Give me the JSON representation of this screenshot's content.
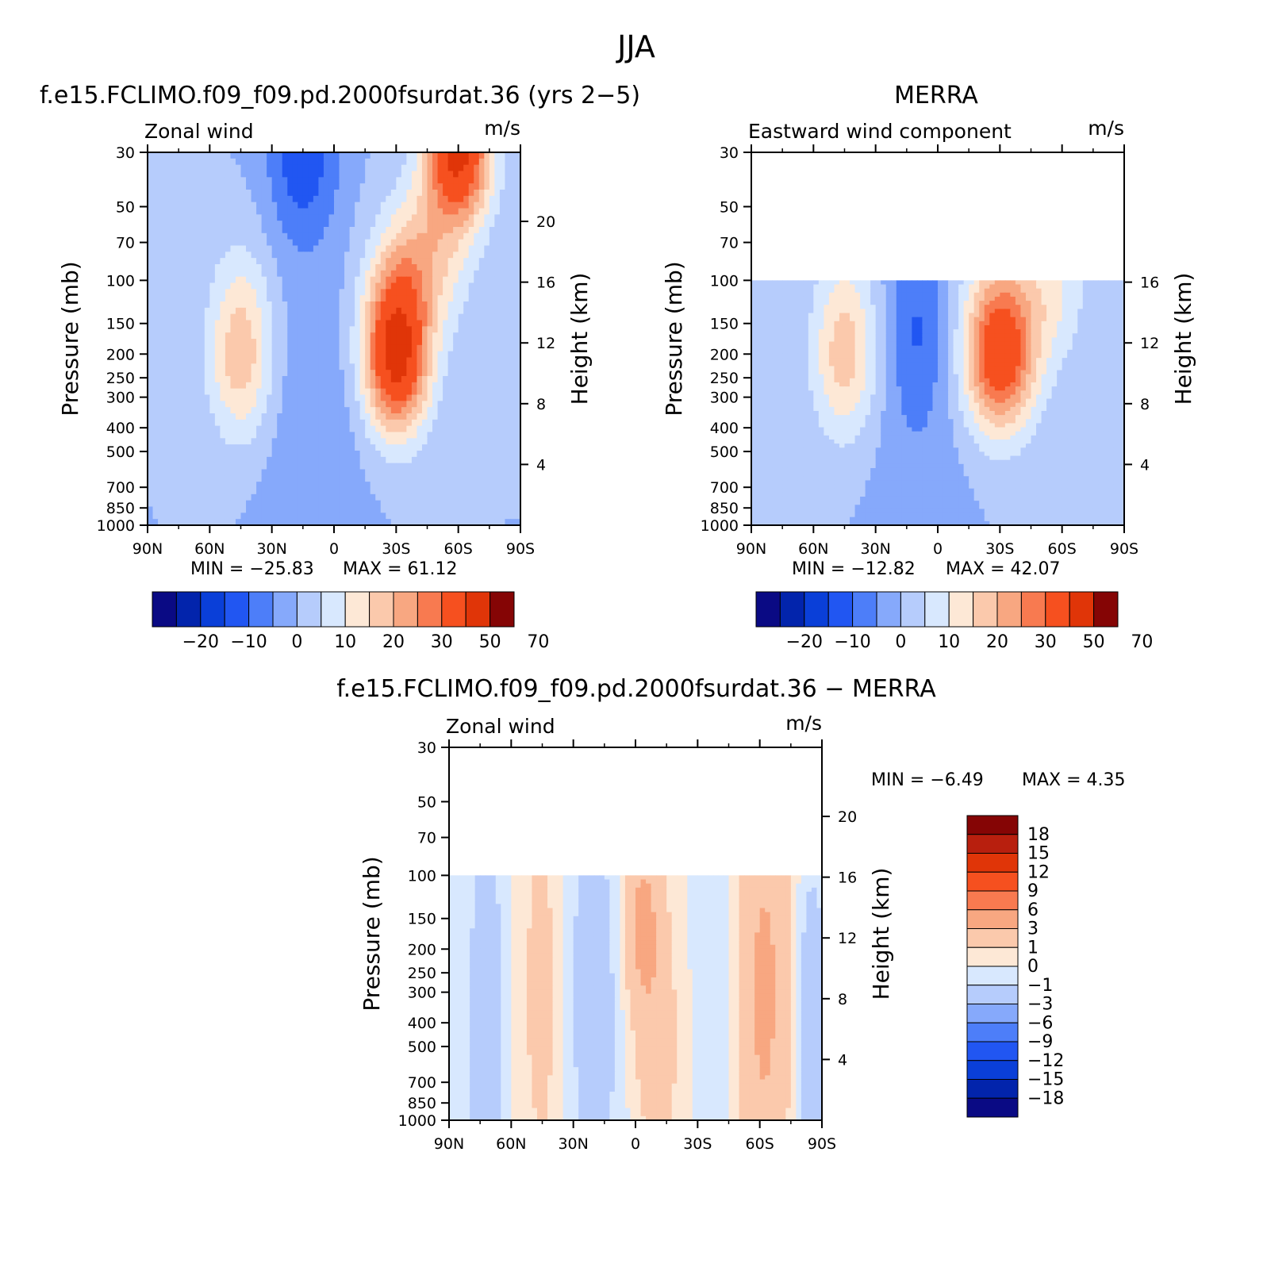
{
  "page": {
    "title": "JJA"
  },
  "chart_data": [
    {
      "id": "model",
      "type": "heatmap",
      "title": "f.e15.FCLIMO.f09_f09.pd.2000fsurdat.36 (yrs 2−5)",
      "subtitle_left": "Zonal wind",
      "subtitle_right": "m/s",
      "ylabel": "Pressure (mb)",
      "ylabel_right": "Height (km)",
      "x_ticks": [
        "90N",
        "60N",
        "30N",
        "0",
        "30S",
        "60S",
        "90S"
      ],
      "x_values": [
        90,
        60,
        30,
        0,
        -30,
        -60,
        -90
      ],
      "y_ticks": [
        "30",
        "50",
        "70",
        "100",
        "150",
        "200",
        "250",
        "300",
        "400",
        "500",
        "700",
        "850",
        "1000"
      ],
      "y_values": [
        30,
        50,
        70,
        100,
        150,
        200,
        250,
        300,
        400,
        500,
        700,
        850,
        1000
      ],
      "ylim": [
        1000,
        30
      ],
      "y_scale": "log",
      "height_ticks": [
        "20",
        "16",
        "12",
        "8",
        "4"
      ],
      "height_values": [
        20,
        16,
        12,
        8,
        4
      ],
      "data_top": 30,
      "min_text": "MIN = −25.83",
      "max_text": "MAX = 61.12",
      "min": -25.83,
      "max": 61.12,
      "levels": [
        -25,
        -20,
        -15,
        -10,
        -5,
        0,
        5,
        10,
        15,
        20,
        25,
        30,
        40,
        50,
        60,
        70
      ],
      "colorbar_labels": [
        "−20",
        "−10",
        "0",
        "10",
        "20",
        "30",
        "50",
        "70"
      ],
      "colorbar_label_values": [
        -20,
        -10,
        0,
        10,
        20,
        30,
        50,
        70
      ],
      "jets": [
        {
          "lat": 45,
          "p": 200,
          "peak": 19,
          "sx": 11,
          "sy": 0.55,
          "ymax": 1
        },
        {
          "lat": -30,
          "p": 200,
          "peak": 45,
          "sx": 11,
          "sy": 0.5,
          "ymax": 1
        },
        {
          "lat": -60,
          "p": 30,
          "peak": 42,
          "sx": 11,
          "sy": 0.45,
          "ymax": 0
        },
        {
          "lat": -45,
          "p": 80,
          "peak": 15,
          "sx": 14,
          "sy": 0.5,
          "ymax": 0
        },
        {
          "lat": 15,
          "p": 30,
          "peak": -14,
          "sx": 12,
          "sy": 0.6,
          "ymax": 0
        },
        {
          "lat": 10,
          "p": 400,
          "peak": -4,
          "sx": 18,
          "sy": 1.0,
          "ymax": 0
        }
      ]
    },
    {
      "id": "merra",
      "type": "heatmap",
      "title": "MERRA",
      "subtitle_left": "Eastward wind component",
      "subtitle_right": "m/s",
      "ylabel": "Pressure (mb)",
      "ylabel_right": "Height (km)",
      "x_ticks": [
        "90N",
        "60N",
        "30N",
        "0",
        "30S",
        "60S",
        "90S"
      ],
      "x_values": [
        90,
        60,
        30,
        0,
        -30,
        -60,
        -90
      ],
      "y_ticks": [
        "30",
        "50",
        "70",
        "100",
        "150",
        "200",
        "250",
        "300",
        "400",
        "500",
        "700",
        "850",
        "1000"
      ],
      "y_values": [
        30,
        50,
        70,
        100,
        150,
        200,
        250,
        300,
        400,
        500,
        700,
        850,
        1000
      ],
      "ylim": [
        1000,
        30
      ],
      "y_scale": "log",
      "height_ticks": [
        "16",
        "12",
        "8",
        "4"
      ],
      "height_values": [
        16,
        12,
        8,
        4
      ],
      "data_top": 100,
      "min_text": "MIN = −12.82",
      "max_text": "MAX = 42.07",
      "min": -12.82,
      "max": 42.07,
      "levels": [
        -25,
        -20,
        -15,
        -10,
        -5,
        0,
        5,
        10,
        15,
        20,
        25,
        30,
        40,
        50,
        60,
        70
      ],
      "colorbar_labels": [
        "−20",
        "−10",
        "0",
        "10",
        "20",
        "30",
        "50",
        "70"
      ],
      "colorbar_label_values": [
        -20,
        -10,
        0,
        10,
        20,
        30,
        50,
        70
      ],
      "jets": [
        {
          "lat": 45,
          "p": 200,
          "peak": 18,
          "sx": 11,
          "sy": 0.55,
          "ymax": 1
        },
        {
          "lat": -30,
          "p": 200,
          "peak": 38,
          "sx": 12,
          "sy": 0.5,
          "ymax": 1
        },
        {
          "lat": -55,
          "p": 110,
          "peak": 10,
          "sx": 12,
          "sy": 0.5,
          "ymax": 0
        },
        {
          "lat": 10,
          "p": 150,
          "peak": -9,
          "sx": 10,
          "sy": 0.6,
          "ymax": 0
        },
        {
          "lat": 10,
          "p": 500,
          "peak": -3,
          "sx": 16,
          "sy": 1.0,
          "ymax": 0
        }
      ]
    },
    {
      "id": "diff",
      "type": "heatmap",
      "title": "f.e15.FCLIMO.f09_f09.pd.2000fsurdat.36 − MERRA",
      "subtitle_left": "Zonal wind",
      "subtitle_right": "m/s",
      "ylabel": "Pressure (mb)",
      "ylabel_right": "Height (km)",
      "x_ticks": [
        "90N",
        "60N",
        "30N",
        "0",
        "30S",
        "60S",
        "90S"
      ],
      "x_values": [
        90,
        60,
        30,
        0,
        -30,
        -60,
        -90
      ],
      "y_ticks": [
        "30",
        "50",
        "70",
        "100",
        "150",
        "200",
        "250",
        "300",
        "400",
        "500",
        "700",
        "850",
        "1000"
      ],
      "y_values": [
        30,
        50,
        70,
        100,
        150,
        200,
        250,
        300,
        400,
        500,
        700,
        850,
        1000
      ],
      "ylim": [
        1000,
        30
      ],
      "y_scale": "log",
      "height_ticks": [
        "20",
        "16",
        "12",
        "8",
        "4"
      ],
      "height_values": [
        20,
        16,
        12,
        8,
        4
      ],
      "data_top": 100,
      "min_text": "MIN = −6.49",
      "max_text": "MAX = 4.35",
      "min": -6.49,
      "max": 4.35,
      "levels": [
        -18,
        -15,
        -12,
        -9,
        -6,
        -3,
        -1,
        0,
        1,
        3,
        6,
        9,
        12,
        15,
        18
      ],
      "colorbar_labels": [
        "18",
        "15",
        "12",
        "9",
        "6",
        "3",
        "1",
        "0",
        "−1",
        "−3",
        "−6",
        "−9",
        "−12",
        "−15",
        "−18"
      ],
      "colorbar_label_values": [
        18,
        15,
        12,
        9,
        6,
        3,
        1,
        0,
        -1,
        -3,
        -6,
        -9,
        -12,
        -15,
        -18
      ],
      "jets": [
        {
          "lat": 72,
          "p": 400,
          "peak": -2.5,
          "sx": 6,
          "sy": 1.2,
          "ymax": 0
        },
        {
          "lat": 45,
          "p": 300,
          "peak": 1.5,
          "sx": 8,
          "sy": 1.5,
          "ymax": 0
        },
        {
          "lat": 20,
          "p": 300,
          "peak": -2.0,
          "sx": 10,
          "sy": 1.3,
          "ymax": 0
        },
        {
          "lat": -3,
          "p": 150,
          "peak": 3.5,
          "sx": 7,
          "sy": 0.6,
          "ymax": 0
        },
        {
          "lat": -10,
          "p": 500,
          "peak": 2.0,
          "sx": 8,
          "sy": 0.8,
          "ymax": 0
        },
        {
          "lat": -40,
          "p": 300,
          "peak": -0.8,
          "sx": 8,
          "sy": 1.5,
          "ymax": 0
        },
        {
          "lat": -62,
          "p": 300,
          "peak": 3.5,
          "sx": 9,
          "sy": 1.5,
          "ymax": 0
        },
        {
          "lat": -85,
          "p": 400,
          "peak": -2.5,
          "sx": 5,
          "sy": 1.0,
          "ymax": 0
        }
      ]
    }
  ]
}
